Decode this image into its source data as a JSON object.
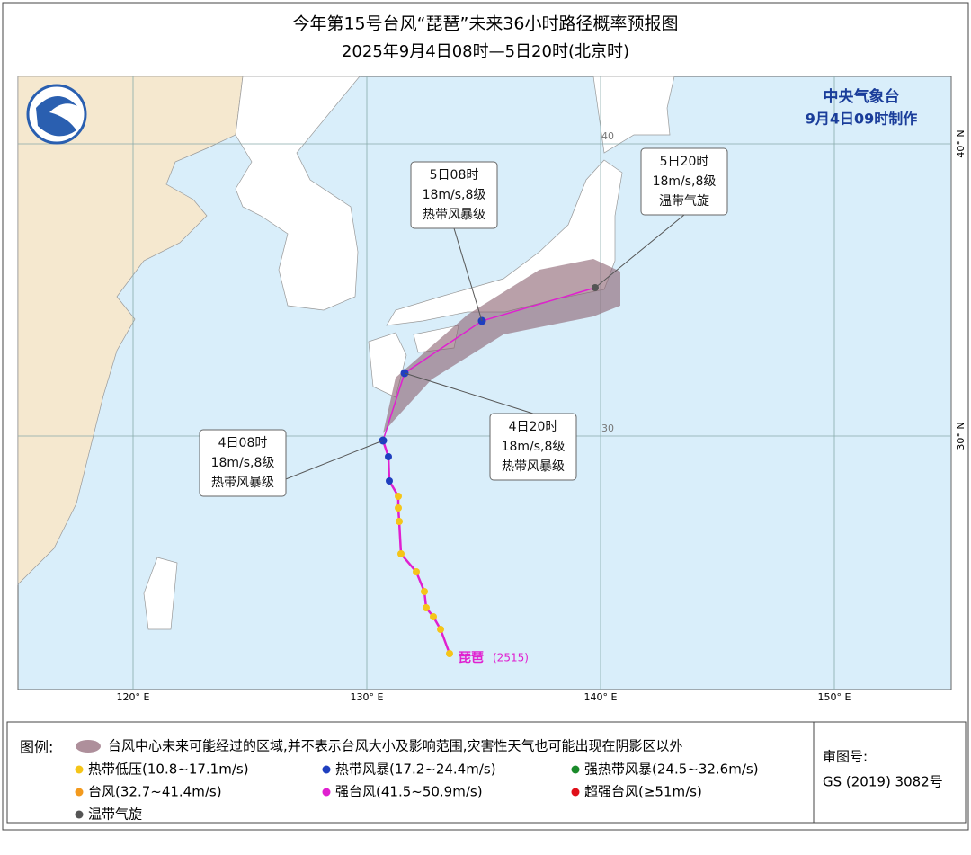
{
  "header": {
    "title": "今年第15号台风“琵琶”未来36小时路径概率预报图",
    "subtitle": "2025年9月4日08时—5日20时(北京时)"
  },
  "agency": {
    "name": "中央气象台",
    "made": "9月4日09时制作"
  },
  "map": {
    "lon_ticks": [
      {
        "value": 120,
        "label": "120° E"
      },
      {
        "value": 130,
        "label": "130° E"
      },
      {
        "value": 140,
        "label": "140° E"
      },
      {
        "value": 150,
        "label": "150° E"
      }
    ],
    "lat_ticks": [
      {
        "value": 40,
        "label": "40° N",
        "inner": "40"
      },
      {
        "value": 30,
        "label": "30° N",
        "inner": "30"
      }
    ],
    "storm": {
      "name": "琵琶",
      "code": "(2515)"
    },
    "callouts": [
      {
        "time": "4日08时",
        "wind": "18m/s,8级",
        "level": "热带风暴级"
      },
      {
        "time": "4日20时",
        "wind": "18m/s,8级",
        "level": "热带风暴级"
      },
      {
        "time": "5日08时",
        "wind": "18m/s,8级",
        "level": "热带风暴级"
      },
      {
        "time": "5日20时",
        "wind": "18m/s,8级",
        "level": "温带气旋"
      }
    ]
  },
  "legend": {
    "title": "图例:",
    "cone": "台风中心未来可能经过的区域,并不表示台风大小及影响范围,灾害性天气也可能出现在阴影区以外",
    "items": [
      {
        "label": "热带低压(10.8~17.1m/s)",
        "color": "#f5c518"
      },
      {
        "label": "热带风暴(17.2~24.4m/s)",
        "color": "#1f3fbf"
      },
      {
        "label": "强热带风暴(24.5~32.6m/s)",
        "color": "#1a8a2a"
      },
      {
        "label": "台风(32.7~41.4m/s)",
        "color": "#f39a1e"
      },
      {
        "label": "强台风(41.5~50.9m/s)",
        "color": "#e020d0"
      },
      {
        "label": "超强台风(≥51m/s)",
        "color": "#e0101a"
      },
      {
        "label": "温带气旋",
        "color": "#555555"
      }
    ]
  },
  "approval": {
    "label": "审图号:",
    "number": "GS (2019) 3082号"
  }
}
